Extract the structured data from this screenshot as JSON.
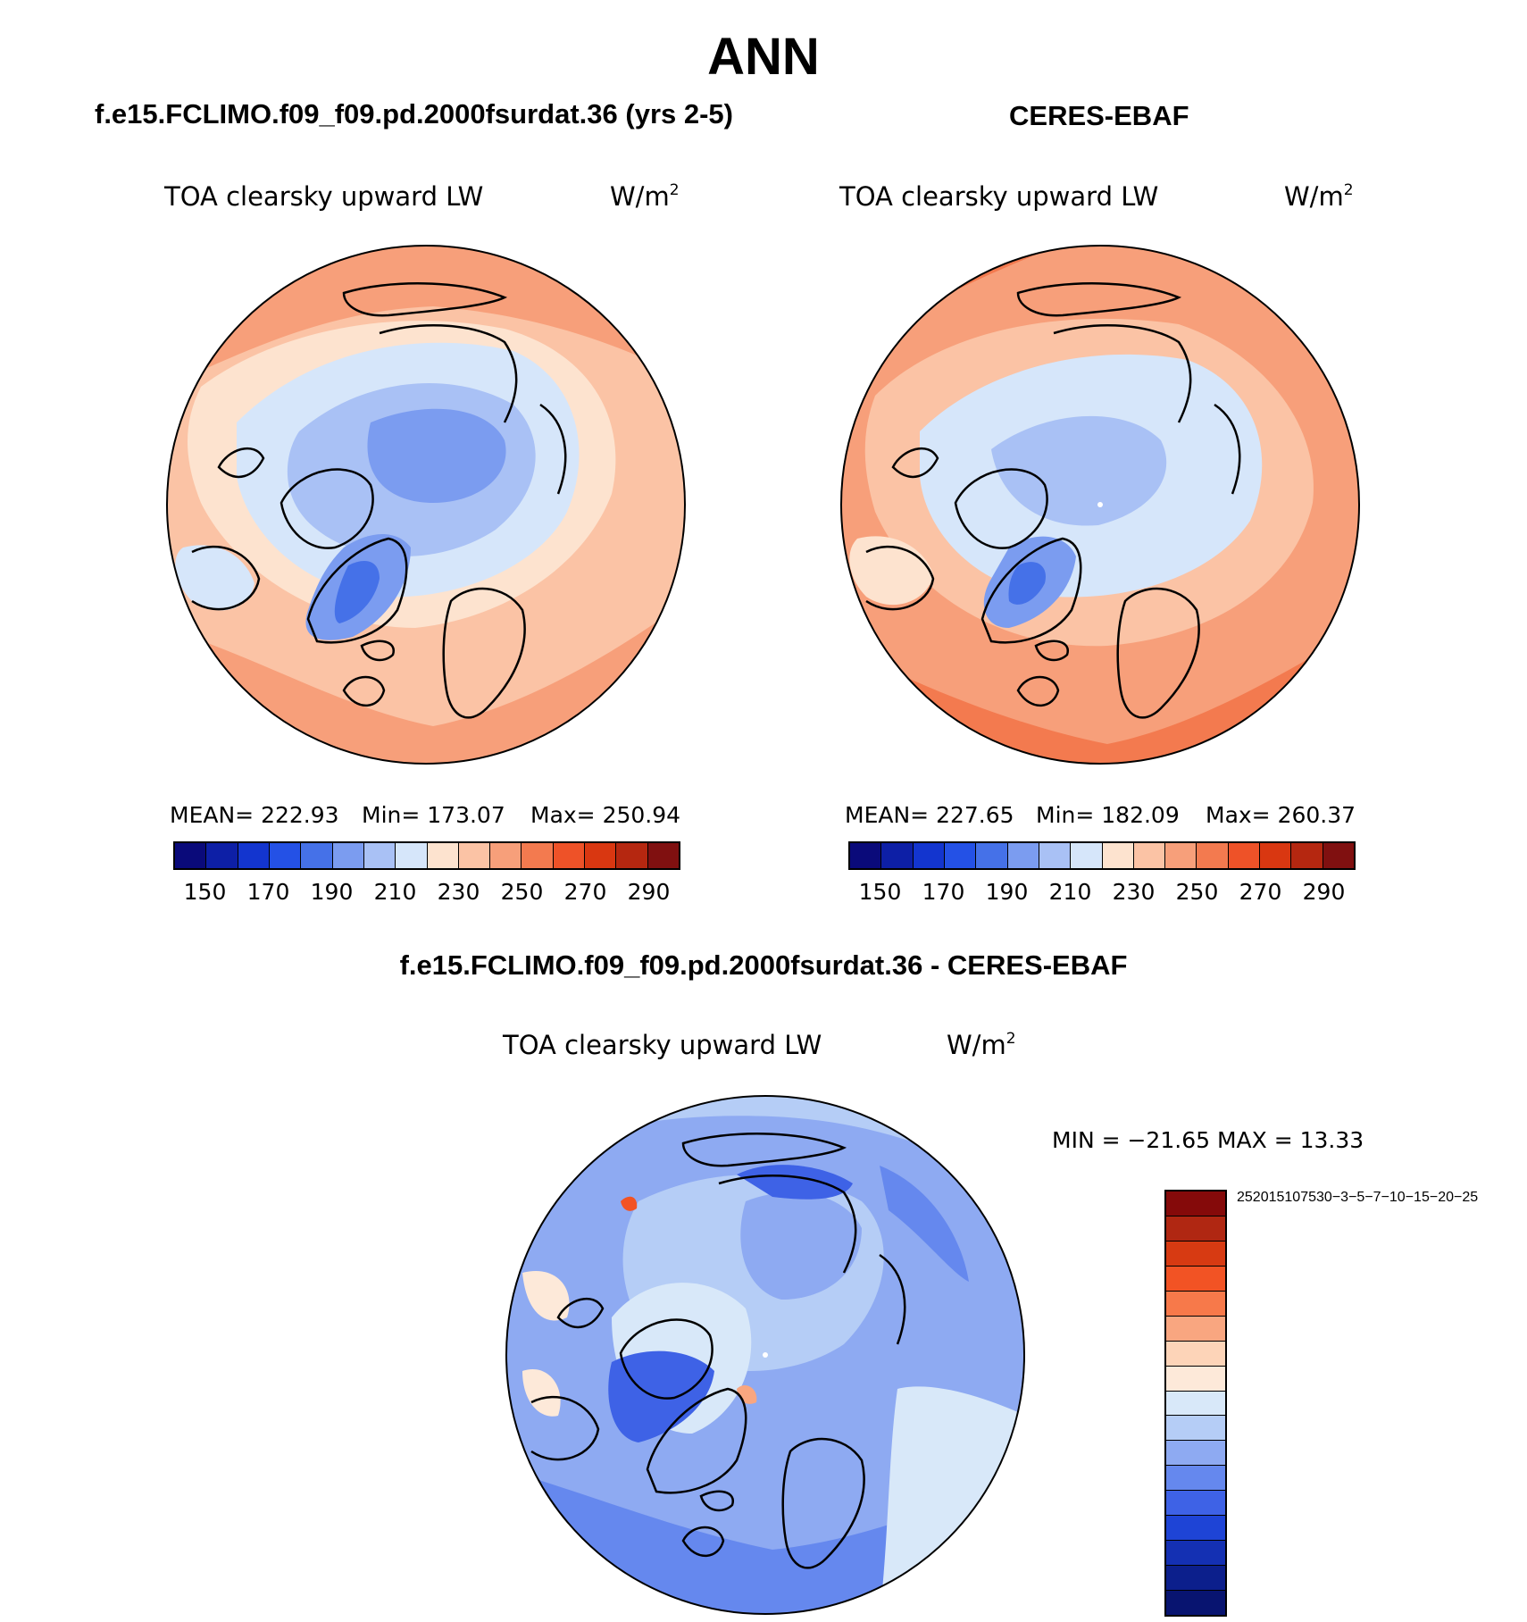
{
  "season": "ANN",
  "variable": "TOA clearsky upward LW",
  "units_base": "W/m",
  "units_exp": "2",
  "panels": [
    {
      "title": "f.e15.FCLIMO.f09_f09.pd.2000fsurdat.36 (yrs 2-5)",
      "mean_label": "MEAN=",
      "mean": "222.93",
      "min_label": "Min=",
      "min": "173.07",
      "max_label": "Max=",
      "max": "250.94"
    },
    {
      "title": "CERES-EBAF",
      "mean_label": "MEAN=",
      "mean": "227.65",
      "min_label": "Min=",
      "min": "182.09",
      "max_label": "Max=",
      "max": "260.37"
    }
  ],
  "abs_colorbar": {
    "colors": [
      "#0a0a7a",
      "#0d1fa6",
      "#1335cf",
      "#2451e6",
      "#4571e8",
      "#7b9cf0",
      "#a9c1f5",
      "#d6e6fa",
      "#fde3cf",
      "#fbc3a5",
      "#f79f7a",
      "#f37a4f",
      "#ee5228",
      "#d93711",
      "#b52710",
      "#801010"
    ],
    "tick_labels": [
      "150",
      "170",
      "190",
      "210",
      "230",
      "250",
      "270",
      "290"
    ]
  },
  "diff": {
    "title": "f.e15.FCLIMO.f09_f09.pd.2000fsurdat.36 - CERES-EBAF",
    "min_max_text": "MIN = −21.65 MAX =  13.33",
    "colors": [
      "#850a0a",
      "#b02712",
      "#d73a12",
      "#f25324",
      "#f7794a",
      "#f9a680",
      "#fdd4b8",
      "#fde9d9",
      "#d8e8f9",
      "#b5cdf6",
      "#8eaaf2",
      "#6588ee",
      "#3e62e6",
      "#1e44d6",
      "#1430b3",
      "#0c1f8c",
      "#081470"
    ],
    "tick_labels": [
      "25",
      "20",
      "15",
      "10",
      "7",
      "5",
      "3",
      "0",
      "−3",
      "−5",
      "−7",
      "−10",
      "−15",
      "−20",
      "−25"
    ]
  }
}
